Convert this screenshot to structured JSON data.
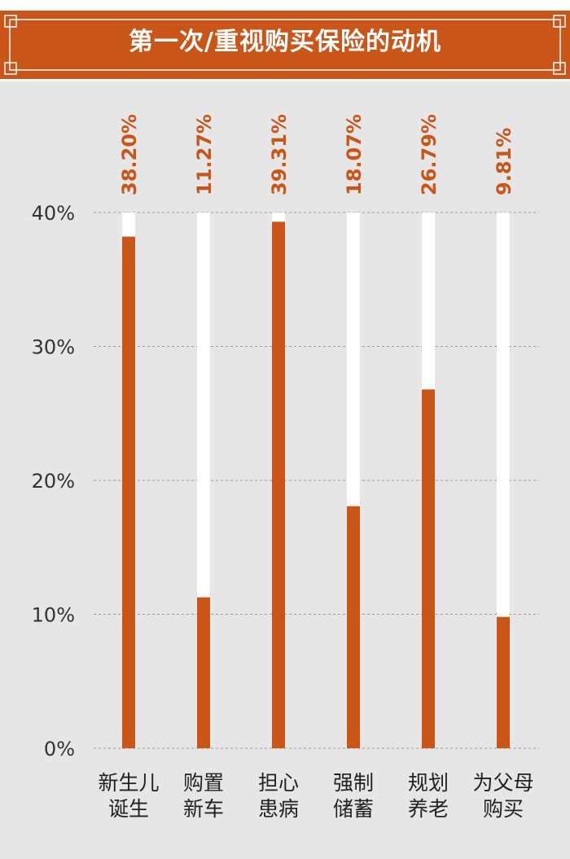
{
  "header": {
    "title": "第一次/重视购买保险的动机"
  },
  "colors": {
    "accent": "#c95519",
    "track": "#ffffff",
    "background": "#e6e6e6"
  },
  "chart_data": {
    "type": "bar",
    "title": "第一次/重视购买保险的动机",
    "categories": [
      [
        "新生儿",
        "诞生"
      ],
      [
        "购置",
        "新车"
      ],
      [
        "担心",
        "患病"
      ],
      [
        "强制",
        "储蓄"
      ],
      [
        "规划",
        "养老"
      ],
      [
        "为父母",
        "购买"
      ]
    ],
    "values": [
      38.2,
      11.27,
      39.31,
      18.07,
      26.79,
      9.81
    ],
    "value_labels": [
      "38.20%",
      "11.27%",
      "39.31%",
      "18.07%",
      "26.79%",
      "9.81%"
    ],
    "ylim": [
      0,
      40
    ],
    "yticks": [
      0,
      10,
      20,
      30,
      40
    ],
    "ytick_labels": [
      "0%",
      "10%",
      "20%",
      "30%",
      "40%"
    ],
    "grid": true
  }
}
